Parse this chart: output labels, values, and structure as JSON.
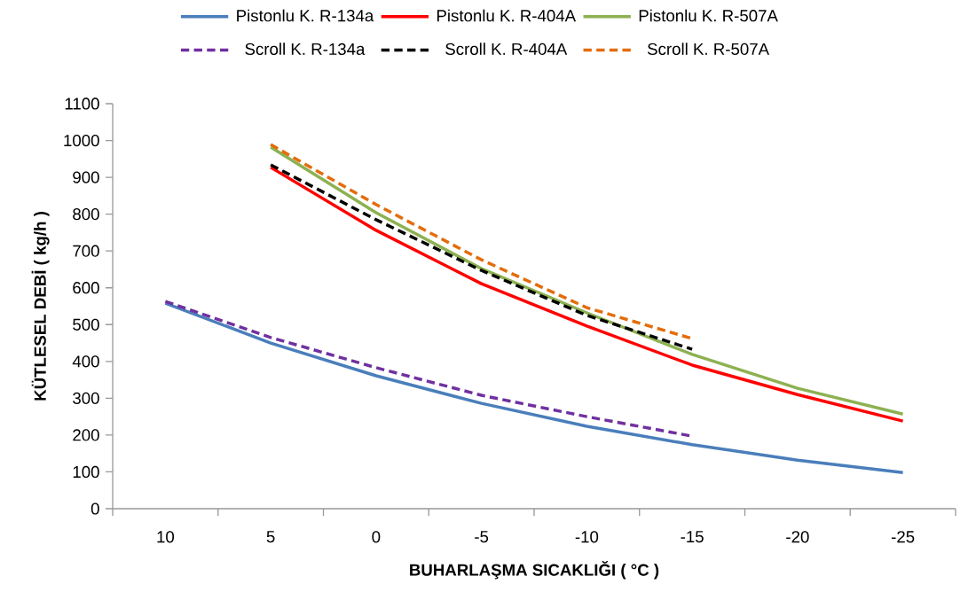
{
  "chart_data": {
    "type": "line",
    "xlabel": "BUHARLAŞMA SICAKLIĞI ( °C )",
    "ylabel": "KÜTLESEL DEBİ ( kg/h )",
    "categories": [
      "10",
      "5",
      "0",
      "-5",
      "-10",
      "-15",
      "-20",
      "-25"
    ],
    "ylim": [
      0,
      1100
    ],
    "yticks": [
      0,
      100,
      200,
      300,
      400,
      500,
      600,
      700,
      800,
      900,
      1000,
      1100
    ],
    "legend": "top",
    "marker": "none",
    "series": [
      {
        "name": "Pistonlu K. R-134a",
        "color": "#4a7ebb",
        "line_style": "solid",
        "values": [
          558,
          450,
          361,
          286,
          224,
          174,
          132,
          98
        ]
      },
      {
        "name": "Pistonlu K. R-404A",
        "color": "#ff0000",
        "line_style": "solid",
        "values": [
          null,
          927,
          756,
          611,
          496,
          390,
          310,
          238
        ]
      },
      {
        "name": "Pistonlu K. R-507A",
        "color": "#8db151",
        "line_style": "solid",
        "values": [
          null,
          982,
          804,
          652,
          532,
          419,
          327,
          257
        ]
      },
      {
        "name": "Scroll K. R-134a",
        "color": "#7030a0",
        "line_style": "dashed",
        "values": [
          563,
          465,
          383,
          308,
          250,
          197,
          null,
          null
        ]
      },
      {
        "name": "Scroll K. R-404A",
        "color": "#000000",
        "line_style": "dashed",
        "values": [
          null,
          934,
          785,
          647,
          525,
          433,
          null,
          null
        ]
      },
      {
        "name": "Scroll K. R-507A",
        "color": "#e46c0a",
        "line_style": "dashed",
        "values": [
          null,
          989,
          826,
          676,
          546,
          462,
          null,
          null
        ]
      }
    ]
  }
}
